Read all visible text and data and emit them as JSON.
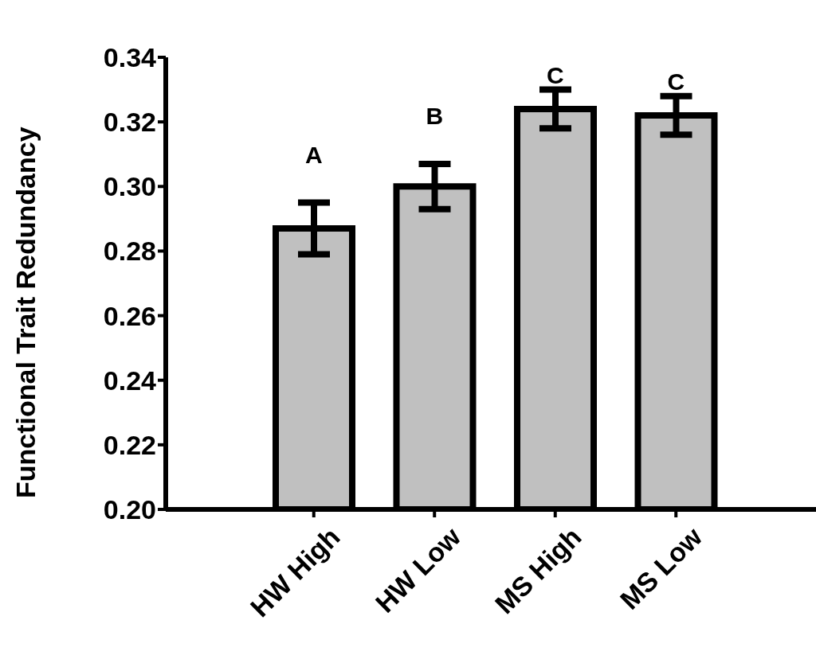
{
  "chart_data": {
    "type": "bar",
    "ylabel": "Functional Trait Redundancy",
    "categories": [
      "HW High",
      "HW Low",
      "MS High",
      "MS Low"
    ],
    "values": [
      0.287,
      0.3,
      0.324,
      0.322
    ],
    "errors": [
      0.008,
      0.007,
      0.006,
      0.006
    ],
    "color": "#c0c0c0",
    "ylim": [
      0.2,
      0.34
    ],
    "yticks": [
      {
        "value": 0.2,
        "label": "0.20"
      },
      {
        "value": 0.22,
        "label": "0.22"
      },
      {
        "value": 0.24,
        "label": "0.24"
      },
      {
        "value": 0.26,
        "label": "0.26"
      },
      {
        "value": 0.28,
        "label": "0.28"
      },
      {
        "value": 0.3,
        "label": "0.30"
      },
      {
        "value": 0.32,
        "label": "0.32"
      },
      {
        "value": 0.34,
        "label": "0.34"
      }
    ],
    "grid": false,
    "legend": false,
    "annotations": [
      "A",
      "B",
      "C",
      "C"
    ]
  }
}
